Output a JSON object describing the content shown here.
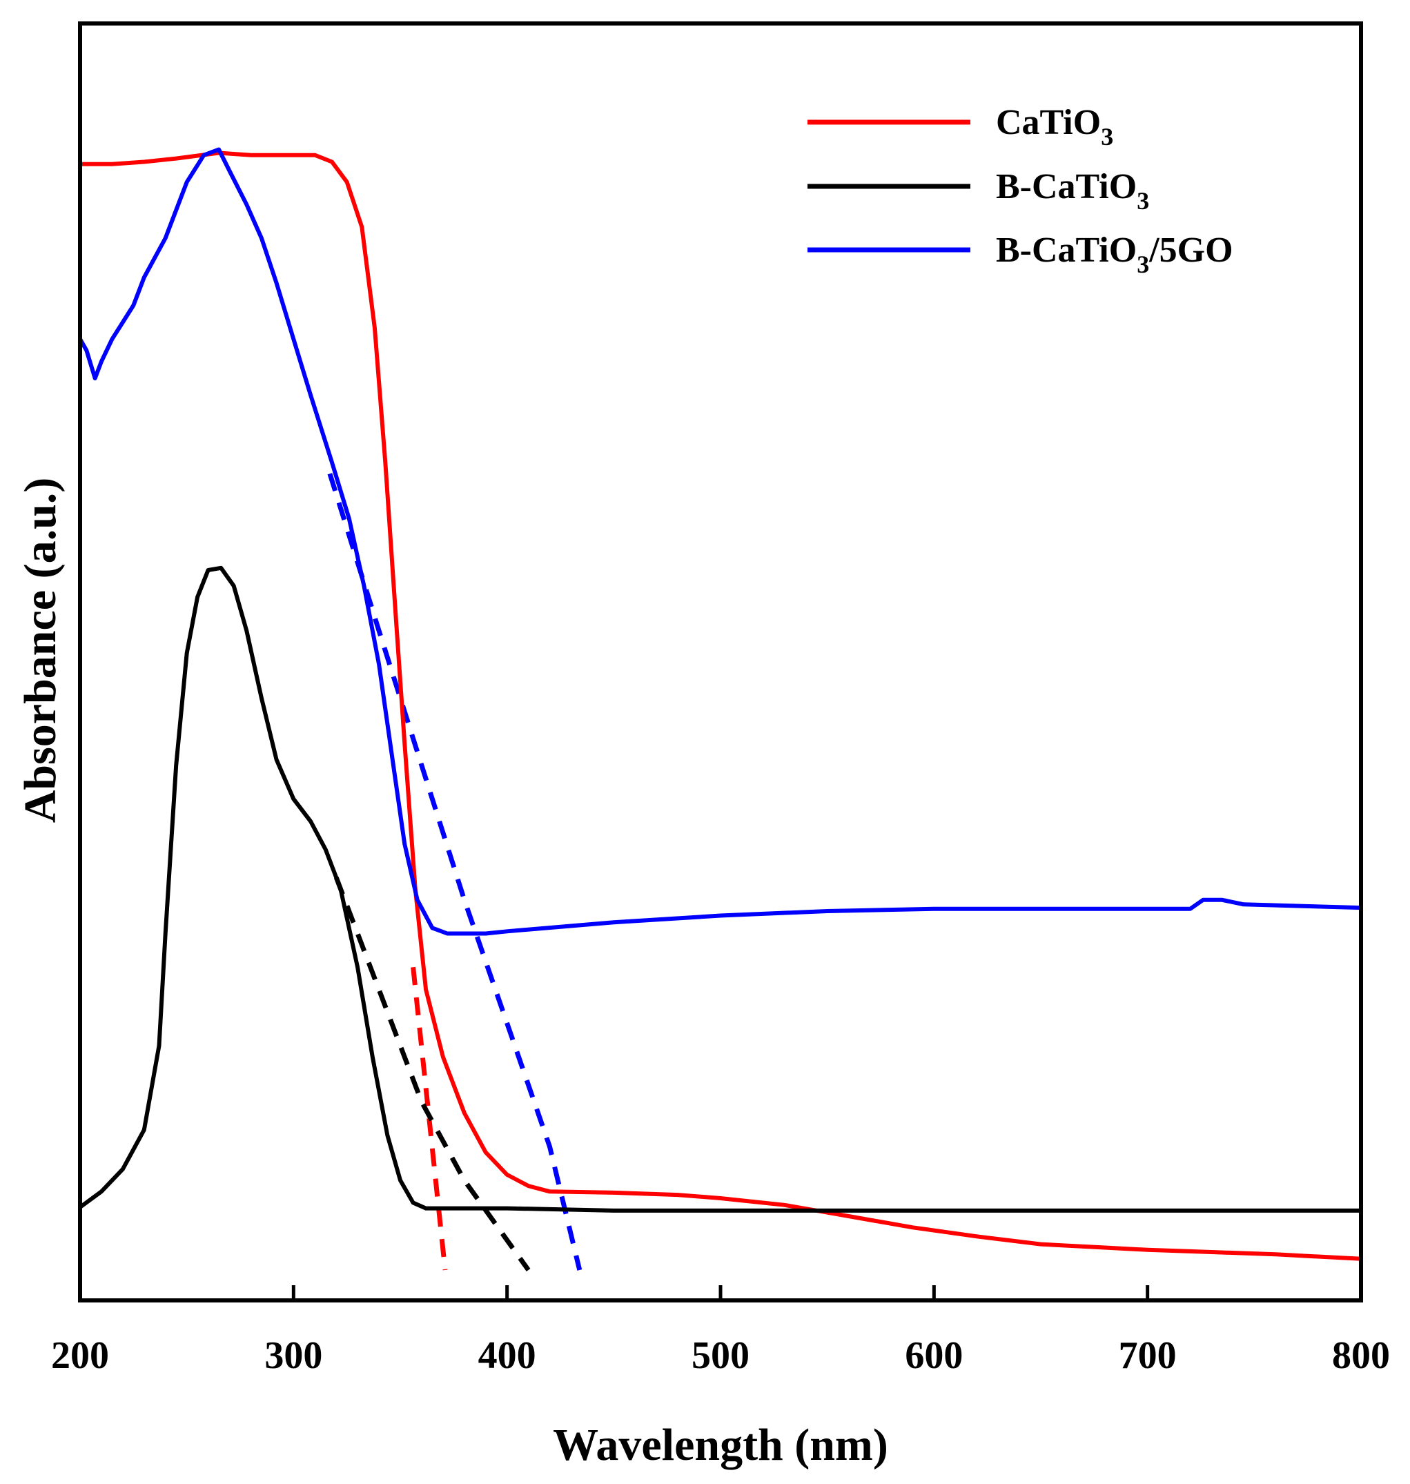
{
  "chart_data": {
    "type": "line",
    "title": "",
    "xlabel": "Wavelength (nm)",
    "ylabel": "Absorbance (a.u.)",
    "xlim": [
      200,
      800
    ],
    "ylim": [
      0,
      100
    ],
    "xticks": [
      200,
      300,
      400,
      500,
      600,
      700,
      800
    ],
    "xtick_labels": [
      "200",
      "300",
      "400",
      "500",
      "600",
      "700",
      "800"
    ],
    "yticks_shown": false,
    "legend_position": "top-right",
    "series": [
      {
        "name": "CaTiO3",
        "label_parts": [
          "CaTiO",
          "3",
          ""
        ],
        "color": "#ff0000",
        "style": "solid",
        "points": [
          [
            200,
            98.6
          ],
          [
            215,
            98.6
          ],
          [
            230,
            98.8
          ],
          [
            245,
            99.1
          ],
          [
            265,
            99.6
          ],
          [
            280,
            99.4
          ],
          [
            310,
            99.4
          ],
          [
            318,
            98.8
          ],
          [
            325,
            97.0
          ],
          [
            332,
            93.0
          ],
          [
            338,
            84.0
          ],
          [
            343,
            72.0
          ],
          [
            348,
            58.0
          ],
          [
            352,
            47.0
          ],
          [
            357,
            34.0
          ],
          [
            362,
            25.0
          ],
          [
            370,
            19.0
          ],
          [
            380,
            14.0
          ],
          [
            390,
            10.5
          ],
          [
            400,
            8.5
          ],
          [
            410,
            7.5
          ],
          [
            420,
            7.0
          ],
          [
            450,
            6.9
          ],
          [
            480,
            6.7
          ],
          [
            500,
            6.4
          ],
          [
            530,
            5.8
          ],
          [
            560,
            4.8
          ],
          [
            590,
            3.8
          ],
          [
            620,
            3.0
          ],
          [
            650,
            2.3
          ],
          [
            680,
            2.0
          ],
          [
            700,
            1.8
          ],
          [
            730,
            1.6
          ],
          [
            760,
            1.4
          ],
          [
            800,
            1.0
          ]
        ]
      },
      {
        "name": "B-CaTiO3",
        "label_parts": [
          "B-CaTiO",
          "3",
          ""
        ],
        "color": "#000000",
        "style": "solid",
        "points": [
          [
            200,
            5.6
          ],
          [
            210,
            7.0
          ],
          [
            220,
            9.0
          ],
          [
            230,
            12.5
          ],
          [
            237,
            20.0
          ],
          [
            240,
            30.0
          ],
          [
            245,
            45.0
          ],
          [
            250,
            55.0
          ],
          [
            255,
            60.0
          ],
          [
            260,
            62.4
          ],
          [
            266,
            62.6
          ],
          [
            272,
            61.0
          ],
          [
            278,
            57.0
          ],
          [
            285,
            51.0
          ],
          [
            292,
            45.5
          ],
          [
            300,
            42.0
          ],
          [
            308,
            40.0
          ],
          [
            315,
            37.5
          ],
          [
            322,
            34.0
          ],
          [
            330,
            27.0
          ],
          [
            337,
            19.0
          ],
          [
            344,
            12.0
          ],
          [
            350,
            8.0
          ],
          [
            356,
            6.0
          ],
          [
            362,
            5.5
          ],
          [
            380,
            5.5
          ],
          [
            400,
            5.5
          ],
          [
            450,
            5.3
          ],
          [
            500,
            5.3
          ],
          [
            600,
            5.3
          ],
          [
            700,
            5.3
          ],
          [
            800,
            5.3
          ]
        ]
      },
      {
        "name": "B-CaTiO3/5GO",
        "label_parts": [
          "B-CaTiO",
          "3",
          "/5GO"
        ],
        "color": "#0000ff",
        "style": "solid",
        "points": [
          [
            200,
            83.0
          ],
          [
            203,
            82.0
          ],
          [
            207,
            79.5
          ],
          [
            210,
            81.0
          ],
          [
            215,
            83.0
          ],
          [
            220,
            84.5
          ],
          [
            225,
            86.0
          ],
          [
            230,
            88.5
          ],
          [
            240,
            92.0
          ],
          [
            250,
            97.0
          ],
          [
            258,
            99.4
          ],
          [
            265,
            99.9
          ],
          [
            270,
            98.0
          ],
          [
            278,
            95.0
          ],
          [
            285,
            92.0
          ],
          [
            292,
            88.0
          ],
          [
            300,
            83.0
          ],
          [
            308,
            78.0
          ],
          [
            318,
            72.0
          ],
          [
            326,
            67.0
          ],
          [
            333,
            61.0
          ],
          [
            340,
            54.0
          ],
          [
            346,
            46.0
          ],
          [
            352,
            38.0
          ],
          [
            358,
            33.0
          ],
          [
            365,
            30.5
          ],
          [
            372,
            30.0
          ],
          [
            380,
            30.0
          ],
          [
            390,
            30.0
          ],
          [
            400,
            30.2
          ],
          [
            450,
            31.0
          ],
          [
            500,
            31.6
          ],
          [
            550,
            32.0
          ],
          [
            600,
            32.2
          ],
          [
            650,
            32.2
          ],
          [
            700,
            32.2
          ],
          [
            720,
            32.2
          ],
          [
            726,
            33.0
          ],
          [
            735,
            33.0
          ],
          [
            745,
            32.6
          ],
          [
            800,
            32.3
          ]
        ]
      }
    ],
    "tangent_lines": [
      {
        "series": "CaTiO3",
        "color": "#ff0000",
        "style": "dashed",
        "points": [
          [
            356,
            27.0
          ],
          [
            371,
            0.0
          ]
        ]
      },
      {
        "series": "B-CaTiO3",
        "color": "#000000",
        "style": "dashed",
        "points": [
          [
            320,
            35.0
          ],
          [
            340,
            25.0
          ],
          [
            360,
            15.0
          ],
          [
            380,
            8.0
          ],
          [
            410,
            0.0
          ]
        ]
      },
      {
        "series": "B-CaTiO3/5GO",
        "color": "#0000ff",
        "style": "dashed",
        "points": [
          [
            317,
            71.0
          ],
          [
            340,
            57.0
          ],
          [
            360,
            45.0
          ],
          [
            380,
            33.0
          ],
          [
            400,
            22.0
          ],
          [
            420,
            11.0
          ],
          [
            434,
            0.0
          ]
        ]
      }
    ]
  }
}
